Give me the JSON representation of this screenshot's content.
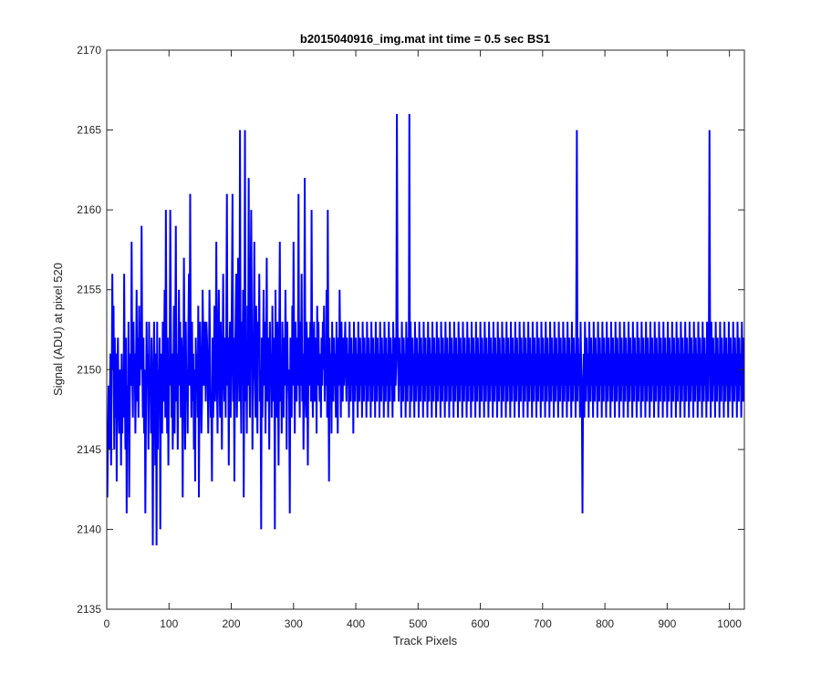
{
  "chart_data": {
    "type": "line",
    "title": "b2015040916_img.mat int time = 0.5 sec   BS1",
    "xlabel": "Track Pixels",
    "ylabel": "Signal (ADU) at pixel 520",
    "xlim": [
      0,
      1024
    ],
    "ylim": [
      2135,
      2170
    ],
    "xticks": [
      0,
      100,
      200,
      300,
      400,
      500,
      600,
      700,
      800,
      900,
      1000
    ],
    "yticks": [
      2135,
      2140,
      2145,
      2150,
      2155,
      2160,
      2165,
      2170
    ],
    "grid": false,
    "line_color": "#0000ff",
    "series": [
      {
        "x_start": 1,
        "x_step": 1,
        "values": [
          2142,
          2146,
          2149,
          2145,
          2148,
          2151,
          2144,
          2149,
          2156,
          2150,
          2154,
          2145,
          2152,
          2147,
          2151,
          2143,
          2150,
          2152,
          2148,
          2146,
          2150,
          2149,
          2144,
          2151,
          2146,
          2150,
          2147,
          2156,
          2149,
          2145,
          2152,
          2141,
          2149,
          2146,
          2153,
          2142,
          2148,
          2151,
          2149,
          2158,
          2150,
          2147,
          2153,
          2149,
          2151,
          2146,
          2150,
          2155,
          2148,
          2152,
          2147,
          2154,
          2149,
          2153,
          2150,
          2159,
          2151,
          2147,
          2152,
          2146,
          2150,
          2141,
          2147,
          2153,
          2149,
          2151,
          2145,
          2153,
          2149,
          2150,
          2146,
          2152,
          2149,
          2139,
          2148,
          2153,
          2150,
          2144,
          2151,
          2147,
          2153,
          2145,
          2150,
          2148,
          2152,
          2140,
          2149,
          2151,
          2146,
          2153,
          2148,
          2150,
          2155,
          2147,
          2160,
          2151,
          2146,
          2152,
          2144,
          2150,
          2149,
          2160,
          2153,
          2147,
          2151,
          2145,
          2149,
          2154,
          2146,
          2152,
          2159,
          2148,
          2151,
          2145,
          2150,
          2155,
          2149,
          2153,
          2147,
          2152,
          2150,
          2142,
          2149,
          2157,
          2151,
          2145,
          2153,
          2148,
          2150,
          2146,
          2152,
          2156,
          2149,
          2161,
          2150,
          2147,
          2153,
          2148,
          2151,
          2145,
          2150,
          2143,
          2152,
          2149,
          2151,
          2147,
          2154,
          2142,
          2149,
          2153,
          2150,
          2146,
          2148,
          2155,
          2152,
          2149,
          2153,
          2151,
          2148,
          2153,
          2152,
          2150,
          2146,
          2149,
          2155,
          2151,
          2147,
          2148,
          2143,
          2152,
          2147,
          2150,
          2154,
          2148,
          2151,
          2158,
          2149,
          2146,
          2152,
          2155,
          2150,
          2147,
          2153,
          2149,
          2145,
          2151,
          2156,
          2150,
          2148,
          2152,
          2147,
          2153,
          2161,
          2149,
          2152,
          2144,
          2151,
          2153,
          2147,
          2150,
          2155,
          2161,
          2148,
          2152,
          2143,
          2150,
          2153,
          2156,
          2147,
          2150,
          2157,
          2152,
          2148,
          2165,
          2150,
          2146,
          2153,
          2149,
          2155,
          2142,
          2150,
          2153,
          2148,
          2151,
          2146,
          2154,
          2149,
          2162,
          2150,
          2147,
          2155,
          2160,
          2153,
          2145,
          2149,
          2152,
          2158,
          2150,
          2147,
          2154,
          2149,
          2146,
          2153,
          2151,
          2156,
          2148,
          2150,
          2140,
          2152,
          2147,
          2151,
          2155,
          2149,
          2153,
          2146,
          2151,
          2157,
          2148,
          2152,
          2150,
          2145,
          2153,
          2149,
          2151,
          2147,
          2154,
          2150,
          2148,
          2152,
          2146,
          2155,
          2150,
          2147,
          2153,
          2149,
          2144,
          2152,
          2158,
          2148,
          2151,
          2146,
          2153,
          2150,
          2147,
          2152,
          2149,
          2155,
          2151,
          2145,
          2153,
          2149,
          2150,
          2148,
          2141,
          2152,
          2150,
          2147,
          2154,
          2149,
          2158,
          2151,
          2146,
          2153,
          2150,
          2148,
          2152,
          2149,
          2161,
          2150,
          2147,
          2153,
          2149,
          2156,
          2148,
          2151,
          2145,
          2150,
          2162,
          2149,
          2147,
          2153,
          2150,
          2144,
          2152,
          2151,
          2149,
          2153,
          2148,
          2160,
          2150,
          2147,
          2151,
          2153,
          2148,
          2150,
          2152,
          2146,
          2154,
          2149,
          2153,
          2150,
          2148,
          2151,
          2147,
          2152,
          2149,
          2153,
          2150,
          2154,
          2148,
          2151,
          2149,
          2155,
          2147,
          2160,
          2150,
          2143,
          2152,
          2149,
          2151,
          2146,
          2153,
          2150,
          2148,
          2152,
          2149,
          2151,
          2147,
          2153,
          2150,
          2146,
          2152,
          2149,
          2155,
          2151,
          2147,
          2153,
          2150,
          2148,
          2152,
          2149,
          2151,
          2153,
          2150,
          2148,
          2152,
          2149,
          2151,
          2147,
          2153,
          2150,
          2148,
          2152,
          2149,
          2151,
          2146,
          2153,
          2150,
          2148,
          2152,
          2149,
          2151,
          2147,
          2153,
          2150,
          2148,
          2152,
          2149,
          2151,
          2147,
          2153,
          2150,
          2148,
          2152,
          2149,
          2151,
          2147,
          2153,
          2150,
          2148,
          2152,
          2149,
          2151,
          2147,
          2153,
          2150,
          2148,
          2152,
          2149,
          2151,
          2147,
          2153,
          2150,
          2148,
          2152,
          2149,
          2151,
          2147,
          2153,
          2150,
          2148,
          2152,
          2149,
          2151,
          2147,
          2153,
          2150,
          2148,
          2152,
          2149,
          2151,
          2147,
          2153,
          2150,
          2148,
          2152,
          2149,
          2151,
          2147,
          2153,
          2150,
          2148,
          2152,
          2149,
          2151,
          2147,
          2153,
          2150,
          2148,
          2152,
          2149,
          2151,
          2147,
          2153,
          2150,
          2148,
          2152,
          2149,
          2151,
          2147,
          2153,
          2150,
          2148,
          2152,
          2149,
          2151,
          2147,
          2153,
          2150,
          2148,
          2152,
          2149,
          2151,
          2147,
          2153,
          2150,
          2148,
          2152,
          2149,
          2151,
          2147,
          2153,
          2150,
          2148,
          2152,
          2149,
          2151,
          2147,
          2153,
          2150,
          2148,
          2152,
          2149,
          2151,
          2147,
          2153,
          2150,
          2148,
          2152,
          2149,
          2151,
          2147,
          2153,
          2150,
          2148,
          2152,
          2149,
          2151,
          2147,
          2153,
          2150,
          2148,
          2152,
          2149,
          2151,
          2147,
          2153,
          2150,
          2148,
          2152,
          2149,
          2151,
          2147,
          2153,
          2150,
          2148,
          2152,
          2149,
          2151,
          2147,
          2153,
          2150,
          2148,
          2152,
          2149,
          2151,
          2147,
          2153,
          2150,
          2148,
          2152,
          2149,
          2151,
          2147,
          2153,
          2150,
          2148,
          2152,
          2149,
          2151,
          2147,
          2153,
          2150,
          2148,
          2152,
          2149,
          2151,
          2147,
          2153,
          2150,
          2148,
          2152,
          2149,
          2151,
          2147,
          2153,
          2150,
          2148,
          2152,
          2149,
          2151,
          2147,
          2153,
          2150,
          2148,
          2152,
          2149,
          2151,
          2147,
          2153,
          2150,
          2148,
          2152,
          2149,
          2151,
          2147,
          2153,
          2150,
          2148,
          2152,
          2149,
          2151,
          2147,
          2153,
          2150,
          2148,
          2152,
          2149,
          2151,
          2147,
          2153,
          2150,
          2148,
          2152,
          2149,
          2151,
          2147,
          2153,
          2150,
          2148,
          2152,
          2149,
          2151,
          2147,
          2153,
          2150,
          2148,
          2152,
          2149,
          2151,
          2147,
          2153,
          2150,
          2148,
          2152,
          2149,
          2151,
          2147,
          2153,
          2150,
          2148,
          2152,
          2149,
          2151,
          2147,
          2153,
          2150,
          2148,
          2152,
          2149,
          2151,
          2147,
          2153,
          2150,
          2148,
          2152,
          2149,
          2151,
          2147,
          2153,
          2150,
          2148,
          2152,
          2149,
          2151,
          2147,
          2153,
          2150,
          2148,
          2152,
          2149,
          2151,
          2147,
          2153,
          2150,
          2148,
          2152,
          2149,
          2151,
          2147,
          2153,
          2150,
          2148,
          2152,
          2149,
          2151,
          2147,
          2153,
          2150,
          2148,
          2152,
          2149,
          2151,
          2147,
          2153,
          2150,
          2148,
          2152,
          2149,
          2151,
          2147,
          2153,
          2150,
          2148,
          2152,
          2149,
          2151,
          2147,
          2153,
          2150,
          2148,
          2152,
          2149,
          2151,
          2147,
          2153,
          2150,
          2148,
          2152,
          2149,
          2151,
          2147,
          2153,
          2150,
          2148,
          2152,
          2149,
          2151,
          2147,
          2153,
          2150,
          2148,
          2152,
          2149,
          2151,
          2147,
          2153,
          2150,
          2148,
          2152,
          2149,
          2151,
          2147,
          2153,
          2150,
          2148,
          2152,
          2149,
          2151,
          2147,
          2153,
          2150,
          2148,
          2152,
          2149,
          2151,
          2147,
          2153,
          2150,
          2148,
          2152,
          2149,
          2151,
          2147,
          2153,
          2150,
          2148,
          2152,
          2149,
          2151,
          2147,
          2153,
          2150,
          2148,
          2152,
          2149,
          2151,
          2147,
          2153,
          2150,
          2148,
          2152,
          2149,
          2151,
          2147,
          2153,
          2150,
          2148,
          2152,
          2149,
          2151,
          2147,
          2153,
          2150,
          2148,
          2152,
          2149,
          2151,
          2147,
          2153,
          2150,
          2148,
          2152,
          2149,
          2151,
          2147,
          2153,
          2150,
          2148,
          2152,
          2149,
          2151,
          2147,
          2153,
          2150,
          2148,
          2152,
          2149,
          2151,
          2147,
          2153,
          2150,
          2148,
          2152,
          2149,
          2151,
          2147,
          2153,
          2150,
          2148,
          2152,
          2149,
          2151,
          2147,
          2153,
          2150,
          2148,
          2152,
          2149,
          2151,
          2147,
          2153,
          2150,
          2148,
          2152,
          2149,
          2151,
          2147,
          2153,
          2150,
          2148,
          2152,
          2149,
          2151,
          2147,
          2153,
          2150,
          2148,
          2152,
          2149,
          2151,
          2147,
          2153,
          2150,
          2148,
          2152,
          2149,
          2151,
          2147,
          2153,
          2150,
          2148,
          2152,
          2149,
          2151,
          2147,
          2153,
          2150,
          2148,
          2152,
          2149,
          2151,
          2147,
          2153,
          2150,
          2148,
          2152,
          2149,
          2151,
          2147,
          2153,
          2150,
          2148,
          2152,
          2149,
          2151,
          2147,
          2153,
          2150,
          2148,
          2152,
          2149,
          2151,
          2147,
          2153,
          2150,
          2148,
          2152,
          2149,
          2151,
          2147,
          2153,
          2150,
          2148,
          2152,
          2149,
          2151,
          2147,
          2153,
          2150,
          2148,
          2152,
          2149,
          2151,
          2147,
          2153,
          2150,
          2148,
          2152,
          2149,
          2151,
          2147,
          2153,
          2150,
          2148,
          2152,
          2149,
          2151,
          2147,
          2153,
          2150,
          2148,
          2152,
          2149,
          2151,
          2147,
          2153,
          2150,
          2148,
          2152,
          2149,
          2151,
          2147,
          2153,
          2150,
          2148,
          2152,
          2149,
          2151,
          2147,
          2153,
          2150,
          2148,
          2152,
          2149,
          2151,
          2147,
          2153,
          2150,
          2148,
          2152,
          2149,
          2151,
          2147,
          2153,
          2150,
          2148,
          2152,
          2149,
          2151,
          2147,
          2153,
          2150,
          2148,
          2152,
          2149,
          2151,
          2147,
          2153,
          2150,
          2148,
          2152,
          2149,
          2151,
          2147,
          2153,
          2150,
          2148,
          2152,
          2149,
          2151,
          2147,
          2153,
          2150,
          2148,
          2152,
          2149,
          2151,
          2147,
          2153,
          2150,
          2148,
          2152,
          2149,
          2151,
          2147,
          2153,
          2150,
          2148,
          2152,
          2149,
          2151,
          2147,
          2153,
          2150,
          2148,
          2152,
          2149,
          2151,
          2147,
          2153,
          2150
        ]
      }
    ],
    "annotations_peaks": [
      {
        "x": 80,
        "y": 2139
      },
      {
        "x": 222,
        "y": 2165
      },
      {
        "x": 270,
        "y": 2140
      },
      {
        "x": 466,
        "y": 2166
      },
      {
        "x": 486,
        "y": 2166
      },
      {
        "x": 755,
        "y": 2165
      },
      {
        "x": 764,
        "y": 2141
      },
      {
        "x": 968,
        "y": 2165
      }
    ]
  }
}
